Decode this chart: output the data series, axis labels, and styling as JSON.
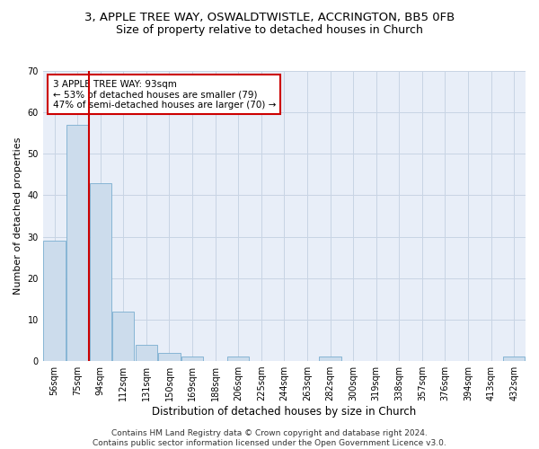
{
  "title1": "3, APPLE TREE WAY, OSWALDTWISTLE, ACCRINGTON, BB5 0FB",
  "title2": "Size of property relative to detached houses in Church",
  "xlabel": "Distribution of detached houses by size in Church",
  "ylabel": "Number of detached properties",
  "categories": [
    "56sqm",
    "75sqm",
    "94sqm",
    "112sqm",
    "131sqm",
    "150sqm",
    "169sqm",
    "188sqm",
    "206sqm",
    "225sqm",
    "244sqm",
    "263sqm",
    "282sqm",
    "300sqm",
    "319sqm",
    "338sqm",
    "357sqm",
    "376sqm",
    "394sqm",
    "413sqm",
    "432sqm"
  ],
  "values": [
    29,
    57,
    43,
    12,
    4,
    2,
    1,
    0,
    1,
    0,
    0,
    0,
    1,
    0,
    0,
    0,
    0,
    0,
    0,
    0,
    1
  ],
  "bar_color": "#ccdcec",
  "bar_edge_color": "#7aaed0",
  "reference_line_color": "#cc0000",
  "annotation_box_text": "3 APPLE TREE WAY: 93sqm\n← 53% of detached houses are smaller (79)\n47% of semi-detached houses are larger (70) →",
  "annotation_box_color": "#cc0000",
  "ylim": [
    0,
    70
  ],
  "yticks": [
    0,
    10,
    20,
    30,
    40,
    50,
    60,
    70
  ],
  "grid_color": "#c8d4e4",
  "background_color": "#e8eef8",
  "footer": "Contains HM Land Registry data © Crown copyright and database right 2024.\nContains public sector information licensed under the Open Government Licence v3.0.",
  "title1_fontsize": 9.5,
  "title2_fontsize": 9,
  "xlabel_fontsize": 8.5,
  "ylabel_fontsize": 8,
  "annotation_fontsize": 7.5,
  "footer_fontsize": 6.5,
  "tick_fontsize": 7
}
